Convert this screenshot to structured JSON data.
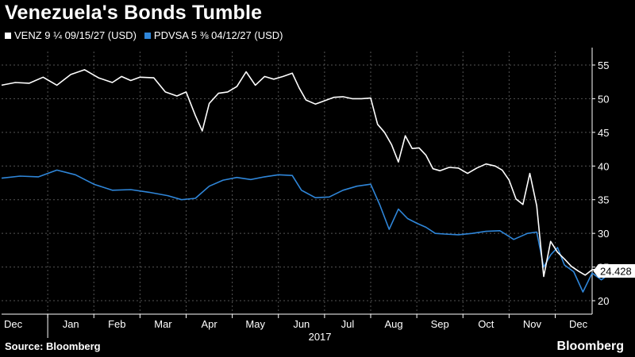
{
  "chart_data": {
    "type": "line",
    "title": "Venezuela's Bonds Tumble",
    "xlabel": "2017",
    "ylabel": "",
    "x_ticks": [
      "Dec",
      "Jan",
      "Feb",
      "Mar",
      "Apr",
      "May",
      "Jun",
      "Jul",
      "Aug",
      "Sep",
      "Oct",
      "Nov",
      "Dec"
    ],
    "y_ticks": [
      20,
      25,
      30,
      35,
      40,
      45,
      50,
      55
    ],
    "ylim": [
      18,
      57
    ],
    "grid": true,
    "legend_position": "top-left",
    "last_value_label": "24.428",
    "source": "Source: Bloomberg",
    "brand": "Bloomberg",
    "series": [
      {
        "name": "VENZ 9 ¼ 09/15/27 (USD)",
        "color": "#ffffff",
        "points": [
          [
            0,
            52
          ],
          [
            0.3,
            52.4
          ],
          [
            0.6,
            52.3
          ],
          [
            0.9,
            53.2
          ],
          [
            1.2,
            52.0
          ],
          [
            1.5,
            53.6
          ],
          [
            1.8,
            54.3
          ],
          [
            2.1,
            53.1
          ],
          [
            2.4,
            52.4
          ],
          [
            2.6,
            53.3
          ],
          [
            2.8,
            52.7
          ],
          [
            3.0,
            53.2
          ],
          [
            3.3,
            53.1
          ],
          [
            3.55,
            51.0
          ],
          [
            3.8,
            50.4
          ],
          [
            4.0,
            51.0
          ],
          [
            4.2,
            47.5
          ],
          [
            4.35,
            45.2
          ],
          [
            4.5,
            49.3
          ],
          [
            4.7,
            50.8
          ],
          [
            4.9,
            51.0
          ],
          [
            5.1,
            51.8
          ],
          [
            5.3,
            54.0
          ],
          [
            5.5,
            52.0
          ],
          [
            5.7,
            53.3
          ],
          [
            5.9,
            52.9
          ],
          [
            6.1,
            53.3
          ],
          [
            6.3,
            53.8
          ],
          [
            6.45,
            51.6
          ],
          [
            6.6,
            49.8
          ],
          [
            6.8,
            49.2
          ],
          [
            7.0,
            49.7
          ],
          [
            7.2,
            50.2
          ],
          [
            7.4,
            50.3
          ],
          [
            7.6,
            50.0
          ],
          [
            7.8,
            50.0
          ],
          [
            8.0,
            50.1
          ],
          [
            8.15,
            46.2
          ],
          [
            8.3,
            45.0
          ],
          [
            8.45,
            43.2
          ],
          [
            8.6,
            40.6
          ],
          [
            8.75,
            44.5
          ],
          [
            8.9,
            42.6
          ],
          [
            9.05,
            42.7
          ],
          [
            9.2,
            41.6
          ],
          [
            9.35,
            39.6
          ],
          [
            9.5,
            39.3
          ],
          [
            9.7,
            39.8
          ],
          [
            9.9,
            39.7
          ],
          [
            10.1,
            38.9
          ],
          [
            10.3,
            39.7
          ],
          [
            10.5,
            40.3
          ],
          [
            10.7,
            40.0
          ],
          [
            10.85,
            39.4
          ],
          [
            11.0,
            37.9
          ],
          [
            11.15,
            35.1
          ],
          [
            11.3,
            34.3
          ],
          [
            11.45,
            38.9
          ],
          [
            11.6,
            34.1
          ],
          [
            11.75,
            23.6
          ],
          [
            11.9,
            28.8
          ],
          [
            12.05,
            27.2
          ],
          [
            12.2,
            26.2
          ],
          [
            12.35,
            25.1
          ],
          [
            12.5,
            24.4
          ],
          [
            12.65,
            23.8
          ],
          [
            12.8,
            24.6
          ],
          [
            12.95,
            24.7
          ],
          [
            13.1,
            24.3
          ],
          [
            13.2,
            24.428
          ]
        ]
      },
      {
        "name": "PDVSA 5 ⅜ 04/12/27 (USD)",
        "color": "#2f86d9",
        "points": [
          [
            0,
            38.2
          ],
          [
            0.4,
            38.5
          ],
          [
            0.8,
            38.4
          ],
          [
            1.2,
            39.4
          ],
          [
            1.6,
            38.7
          ],
          [
            2.0,
            37.3
          ],
          [
            2.4,
            36.4
          ],
          [
            2.8,
            36.5
          ],
          [
            3.2,
            36.1
          ],
          [
            3.6,
            35.6
          ],
          [
            3.9,
            35.0
          ],
          [
            4.2,
            35.2
          ],
          [
            4.5,
            37.0
          ],
          [
            4.8,
            37.9
          ],
          [
            5.1,
            38.3
          ],
          [
            5.4,
            38.0
          ],
          [
            5.7,
            38.4
          ],
          [
            6.0,
            38.7
          ],
          [
            6.3,
            38.6
          ],
          [
            6.5,
            36.4
          ],
          [
            6.8,
            35.3
          ],
          [
            7.1,
            35.4
          ],
          [
            7.4,
            36.4
          ],
          [
            7.7,
            37.0
          ],
          [
            8.0,
            37.3
          ],
          [
            8.2,
            34.2
          ],
          [
            8.4,
            30.6
          ],
          [
            8.6,
            33.6
          ],
          [
            8.8,
            32.2
          ],
          [
            9.0,
            31.5
          ],
          [
            9.2,
            30.9
          ],
          [
            9.4,
            30.0
          ],
          [
            9.6,
            29.9
          ],
          [
            9.9,
            29.8
          ],
          [
            10.2,
            30.0
          ],
          [
            10.5,
            30.3
          ],
          [
            10.8,
            30.4
          ],
          [
            11.1,
            29.1
          ],
          [
            11.4,
            30.0
          ],
          [
            11.6,
            30.2
          ],
          [
            11.75,
            25.0
          ],
          [
            11.9,
            26.8
          ],
          [
            12.05,
            27.9
          ],
          [
            12.2,
            25.3
          ],
          [
            12.4,
            24.3
          ],
          [
            12.6,
            21.3
          ],
          [
            12.8,
            24.1
          ],
          [
            13.0,
            23.1
          ],
          [
            13.2,
            24.1
          ]
        ]
      }
    ]
  }
}
